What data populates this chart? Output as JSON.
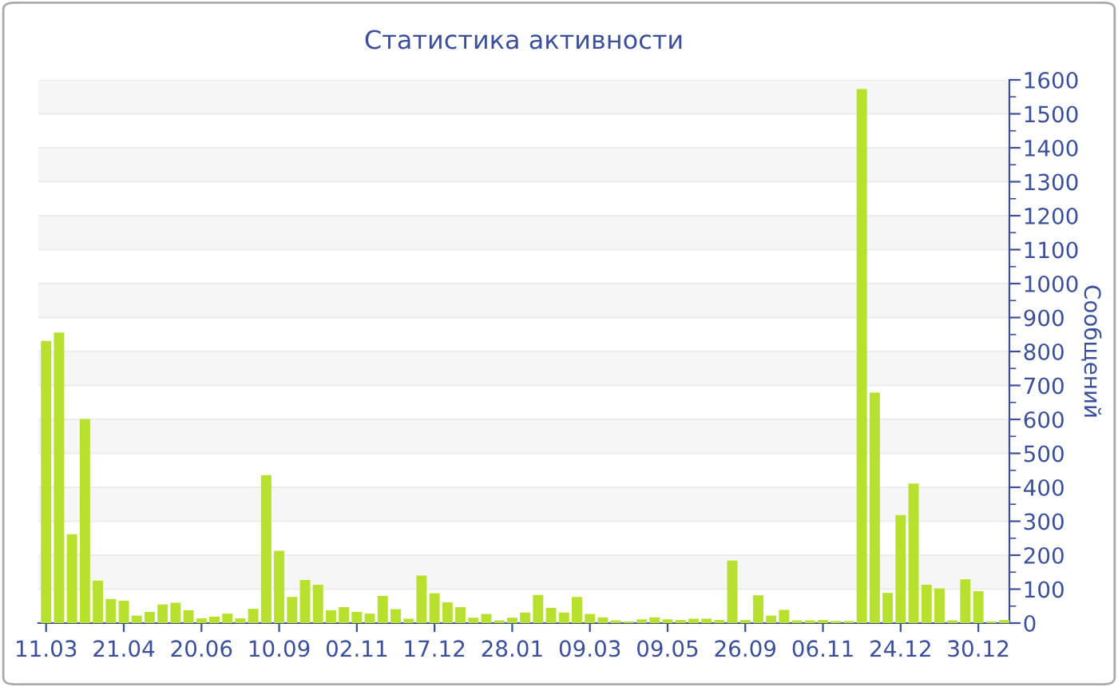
{
  "chart_data": {
    "type": "bar",
    "title": "Статистика активности",
    "ylabel": "Сообщений",
    "categories": [
      "11.03",
      null,
      null,
      null,
      null,
      null,
      "21.04",
      null,
      null,
      null,
      null,
      null,
      "20.06",
      null,
      null,
      null,
      null,
      null,
      "10.09",
      null,
      null,
      null,
      null,
      null,
      "02.11",
      null,
      null,
      null,
      null,
      null,
      "17.12",
      null,
      null,
      null,
      null,
      null,
      "28.01",
      null,
      null,
      null,
      null,
      null,
      "09.03",
      null,
      null,
      null,
      null,
      null,
      "09.05",
      null,
      null,
      null,
      null,
      null,
      "26.09",
      null,
      null,
      null,
      null,
      null,
      "06.11",
      null,
      null,
      null,
      null,
      null,
      "24.12",
      null,
      null,
      null,
      null,
      null,
      "30.12",
      null,
      null
    ],
    "values": [
      831,
      856,
      262,
      601,
      125,
      71,
      66,
      22,
      33,
      55,
      60,
      38,
      14,
      19,
      28,
      14,
      42,
      436,
      213,
      77,
      127,
      113,
      38,
      47,
      33,
      28,
      80,
      41,
      13,
      140,
      88,
      61,
      47,
      16,
      27,
      8,
      16,
      31,
      83,
      45,
      31,
      77,
      27,
      17,
      8,
      5,
      11,
      17,
      11,
      9,
      13,
      13,
      9,
      184,
      9,
      82,
      22,
      39,
      8,
      8,
      9,
      6,
      6,
      1573,
      679,
      89,
      318,
      411,
      113,
      102,
      8,
      129,
      94,
      5,
      9
    ],
    "color": "#b8e02e",
    "ylim": [
      0,
      1600
    ],
    "yticks": [
      0,
      100,
      200,
      300,
      400,
      500,
      600,
      700,
      800,
      900,
      1000,
      1100,
      1200,
      1300,
      1400,
      1500,
      1600
    ],
    "grid": "y"
  }
}
